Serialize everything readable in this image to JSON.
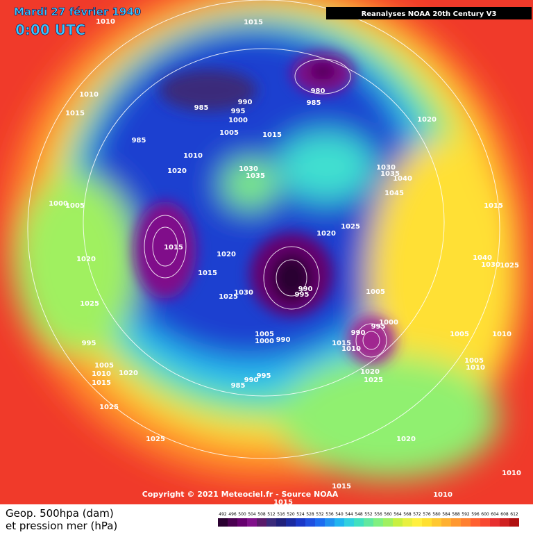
{
  "header": {
    "date": "Mardi 27 février 1940",
    "time": "0:00 UTC",
    "source_banner": "Reanalyses NOAA 20th Century V3"
  },
  "copyright": "Copyright © 2021 Meteociel.fr - Source NOAA",
  "legend": {
    "line1": "Geop. 500hpa (dam)",
    "line2": "et pression mer (hPa)",
    "ticks": [
      492,
      496,
      500,
      504,
      508,
      512,
      516,
      520,
      524,
      528,
      532,
      536,
      540,
      544,
      548,
      552,
      556,
      560,
      564,
      568,
      572,
      576,
      580,
      584,
      588,
      592,
      596,
      600,
      604,
      608,
      612
    ],
    "colors": [
      "#2a0030",
      "#4a0050",
      "#66006e",
      "#80108a",
      "#5a1a6a",
      "#3a2a7a",
      "#20207a",
      "#1a2aa0",
      "#1a38c8",
      "#1e50e0",
      "#1c6cf0",
      "#2090f0",
      "#20b4f0",
      "#30d0e0",
      "#40e0c0",
      "#60e8a0",
      "#80f080",
      "#a0f060",
      "#c8f040",
      "#e8f040",
      "#fff040",
      "#ffe030",
      "#ffc830",
      "#ffb030",
      "#ff9830",
      "#ff8030",
      "#ff6030",
      "#f84830",
      "#e83030",
      "#d02020",
      "#b01010"
    ]
  },
  "isobar_labels": [
    1015,
    1010,
    1010,
    1015,
    985,
    995,
    990,
    1000,
    980,
    985,
    1005,
    1015,
    985,
    1010,
    1020,
    1030,
    1035,
    1020,
    1030,
    1035,
    1040,
    1045,
    1015,
    1000,
    1005,
    1025,
    1020,
    1015,
    1020,
    1020,
    1015,
    1040,
    1030,
    1025,
    1030,
    1025,
    990,
    995,
    1005,
    1025,
    995,
    1000,
    990,
    1005,
    1010,
    1005,
    1000,
    990,
    1015,
    1010,
    995,
    1005,
    1010,
    1015,
    1020,
    1005,
    1010,
    995,
    990,
    985,
    1020,
    1025,
    1025,
    1025,
    1020,
    1010,
    1015,
    1010,
    1015
  ]
}
